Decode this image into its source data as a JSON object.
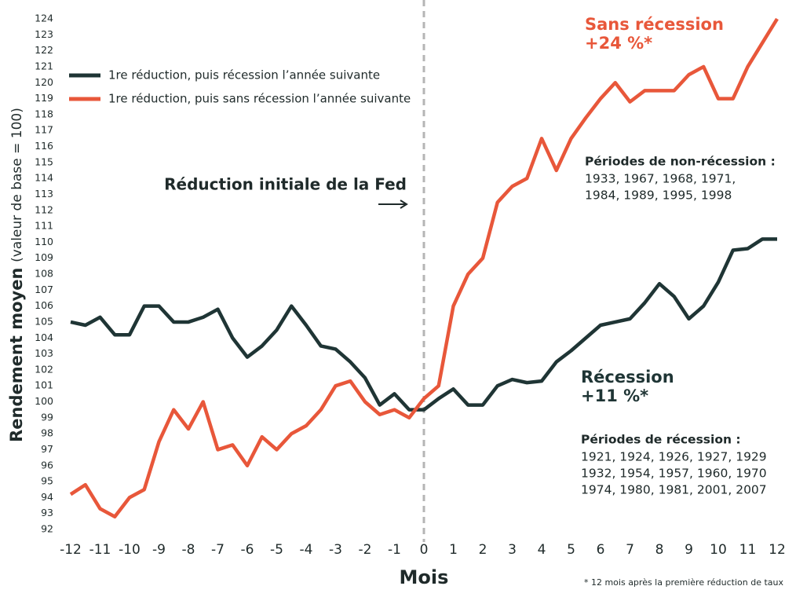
{
  "chart_data": {
    "type": "line",
    "y_label": {
      "main": "Rendement moyen",
      "detail": "(valeur de base = 100)"
    },
    "x_label": "Mois",
    "footnote": "* 12 mois après la première réduction de taux",
    "x": [
      -12,
      -11.5,
      -11,
      -10.5,
      -10,
      -9.5,
      -9,
      -8.5,
      -8,
      -7.5,
      -7,
      -6.5,
      -6,
      -5.5,
      -5,
      -4.5,
      -4,
      -3.5,
      -3,
      -2.5,
      -2,
      -1.5,
      -1,
      -0.5,
      0,
      0.5,
      1,
      1.5,
      2,
      2.5,
      3,
      3.5,
      4,
      4.5,
      5,
      5.5,
      6,
      6.5,
      7,
      7.5,
      8,
      8.5,
      9,
      9.5,
      10,
      10.5,
      11,
      11.5,
      12
    ],
    "series": [
      {
        "name": "1re réduction, puis récession l’année suivante",
        "color": "#1f3535",
        "values": [
          105,
          104.8,
          105.3,
          104.2,
          104.2,
          106,
          106,
          105,
          105,
          105.3,
          105.8,
          104,
          102.8,
          103.5,
          104.5,
          106,
          104.8,
          103.5,
          103.3,
          102.5,
          101.5,
          99.8,
          100.5,
          99.5,
          99.5,
          100.2,
          100.8,
          99.8,
          99.8,
          101,
          101.4,
          101.2,
          101.3,
          102.5,
          103.2,
          104,
          104.8,
          105,
          105.2,
          106.2,
          107.4,
          106.6,
          105.2,
          106,
          107.5,
          109.5,
          109.6,
          110.2,
          110.2
        ]
      },
      {
        "name": "1re réduction, puis sans récession l’année suivante",
        "color": "#e8573a",
        "values": [
          94.2,
          94.8,
          93.3,
          92.8,
          94,
          94.5,
          97.5,
          99.5,
          98.3,
          100,
          97,
          97.3,
          96,
          97.8,
          97,
          98,
          98.5,
          99.5,
          101,
          101.3,
          100,
          99.2,
          99.5,
          99,
          100.2,
          101,
          106,
          108,
          109,
          112.5,
          113.5,
          114,
          116.5,
          114.5,
          116.5,
          117.8,
          119,
          120,
          118.8,
          119.5,
          119.5,
          119.5,
          120.5,
          121,
          119,
          119,
          121,
          122.5,
          124
        ]
      }
    ],
    "xlim": [
      -12,
      12
    ],
    "xticks": [
      -12,
      -11,
      -10,
      -9,
      -8,
      -7,
      -6,
      -5,
      -4,
      -3,
      -2,
      -1,
      0,
      1,
      2,
      3,
      4,
      5,
      6,
      7,
      8,
      9,
      10,
      11,
      12
    ],
    "ylim": [
      92,
      124
    ],
    "yticks": [
      92,
      93,
      94,
      95,
      96,
      97,
      98,
      99,
      100,
      101,
      102,
      103,
      104,
      105,
      106,
      107,
      108,
      109,
      110,
      111,
      112,
      113,
      114,
      115,
      116,
      117,
      118,
      119,
      120,
      121,
      122,
      123,
      124
    ],
    "grid": false,
    "legend": "top-left",
    "event": {
      "x": 0,
      "label": "Réduction initiale de la Fed"
    },
    "annotations": [
      {
        "title": "Sans récession",
        "value": "+24 %*",
        "series": 1,
        "periods_title": "Périodes de non-récession :",
        "periods": [
          "1933, 1967, 1968, 1971,",
          "1984, 1989, 1995, 1998"
        ]
      },
      {
        "title": "Récession",
        "value": "+11 %*",
        "series": 0,
        "periods_title": "Périodes de récession :",
        "periods": [
          "1921, 1924, 1926, 1927, 1929",
          "1932, 1954, 1957, 1960, 1970",
          "1974, 1980, 1981, 2001, 2007"
        ]
      }
    ]
  }
}
